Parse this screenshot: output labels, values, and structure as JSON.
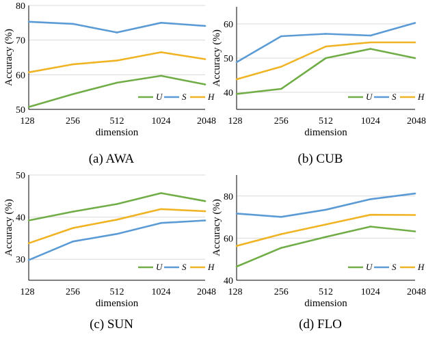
{
  "colors": {
    "U": "#70ad47",
    "S": "#5b9bd5",
    "H": "#f0b323",
    "grid": "#d9d9d9",
    "axis": "#000000"
  },
  "chart_data": [
    {
      "type": "line",
      "caption": "(a) AWA",
      "xlabel": "dimension",
      "ylabel": "Accuracy (%)",
      "categories": [
        "128",
        "256",
        "512",
        "1024",
        "2048"
      ],
      "ylim": [
        50,
        80
      ],
      "yticks": [
        50,
        60,
        70,
        80
      ],
      "grid": "horizontal",
      "legend": "bottom-right",
      "series": [
        {
          "name": "U",
          "color": "#70ad47",
          "values": [
            50.7,
            54.4,
            57.7,
            59.7,
            57.2
          ]
        },
        {
          "name": "S",
          "color": "#5b9bd5",
          "values": [
            75.3,
            74.7,
            72.2,
            75.0,
            74.1
          ]
        },
        {
          "name": "H",
          "color": "#f0b323",
          "values": [
            60.7,
            63.0,
            64.1,
            66.5,
            64.5
          ]
        }
      ]
    },
    {
      "type": "line",
      "caption": "(b) CUB",
      "xlabel": "dimension",
      "ylabel": "Accuracy (%)",
      "categories": [
        "128",
        "256",
        "512",
        "1024",
        "2048"
      ],
      "ylim": [
        35,
        65
      ],
      "yticks": [
        40,
        50,
        60
      ],
      "grid": "horizontal",
      "legend": "bottom-right",
      "series": [
        {
          "name": "U",
          "color": "#70ad47",
          "values": [
            39.5,
            41.0,
            50.0,
            52.7,
            50.0
          ]
        },
        {
          "name": "S",
          "color": "#5b9bd5",
          "values": [
            48.8,
            56.4,
            57.1,
            56.6,
            60.3
          ]
        },
        {
          "name": "H",
          "color": "#f0b323",
          "values": [
            43.8,
            47.5,
            53.4,
            54.6,
            54.6
          ]
        }
      ]
    },
    {
      "type": "line",
      "caption": "(c) SUN",
      "xlabel": "dimension",
      "ylabel": "Accuracy (%)",
      "categories": [
        "128",
        "256",
        "512",
        "1024",
        "2048"
      ],
      "ylim": [
        25,
        50
      ],
      "yticks": [
        30,
        40,
        50
      ],
      "grid": "horizontal",
      "legend": "bottom-right",
      "series": [
        {
          "name": "U",
          "color": "#70ad47",
          "values": [
            39.2,
            41.3,
            43.1,
            45.7,
            43.8
          ]
        },
        {
          "name": "S",
          "color": "#5b9bd5",
          "values": [
            29.8,
            34.2,
            36.0,
            38.6,
            39.2
          ]
        },
        {
          "name": "H",
          "color": "#f0b323",
          "values": [
            33.8,
            37.4,
            39.4,
            41.9,
            41.4
          ]
        }
      ]
    },
    {
      "type": "line",
      "caption": "(d) FLO",
      "xlabel": "dimension",
      "ylabel": "Accuracy (%)",
      "categories": [
        "128",
        "256",
        "512",
        "1024",
        "2048"
      ],
      "ylim": [
        40,
        90
      ],
      "yticks": [
        40,
        60,
        80
      ],
      "grid": "horizontal",
      "legend": "bottom-right",
      "series": [
        {
          "name": "U",
          "color": "#70ad47",
          "values": [
            46.5,
            55.4,
            60.6,
            65.5,
            63.2
          ]
        },
        {
          "name": "S",
          "color": "#5b9bd5",
          "values": [
            71.7,
            70.1,
            73.5,
            78.5,
            81.2
          ]
        },
        {
          "name": "H",
          "color": "#f0b323",
          "values": [
            56.3,
            61.9,
            66.5,
            71.1,
            71.0
          ]
        }
      ]
    }
  ]
}
